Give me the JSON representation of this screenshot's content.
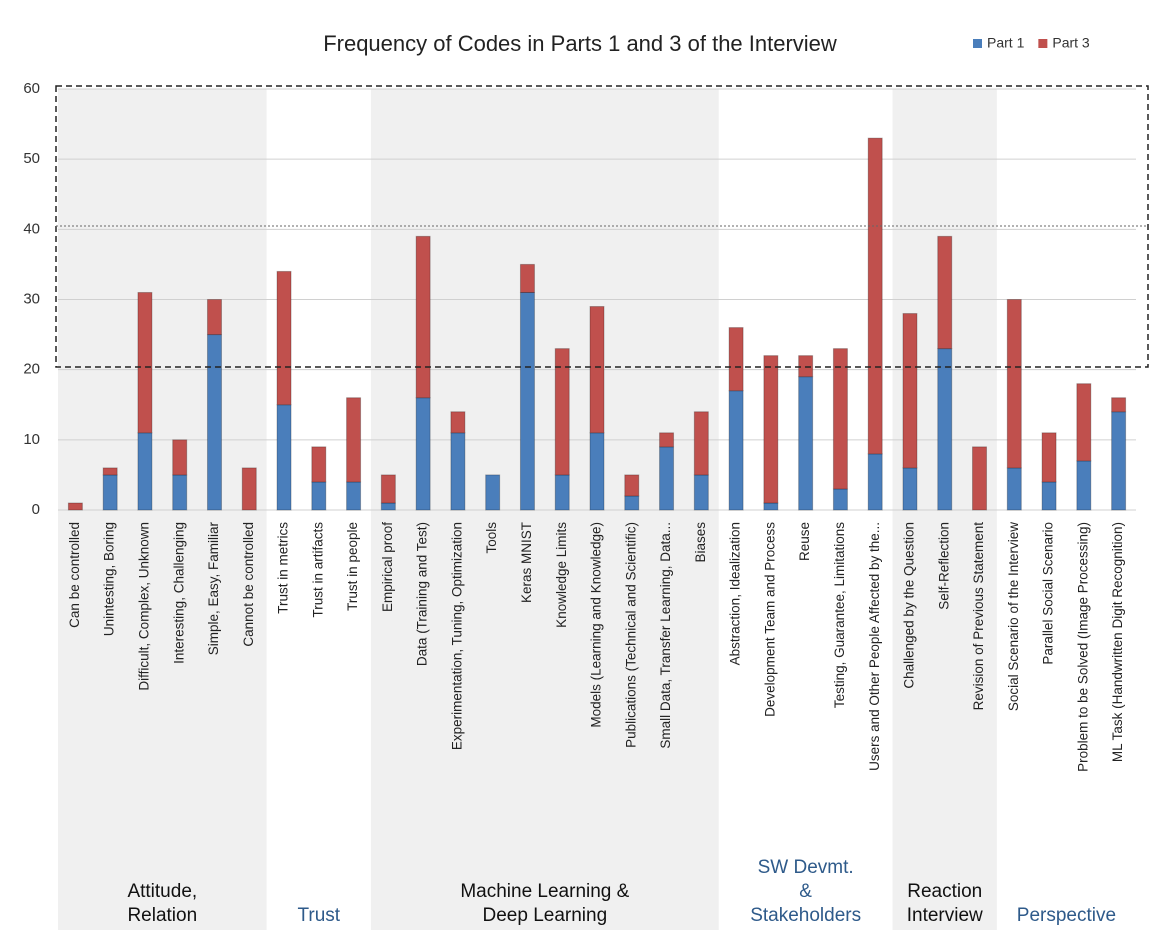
{
  "chart_data": {
    "type": "stacked_bar",
    "title": "Frequency of Codes in Parts 1 and 3 of the Interview",
    "ylim": [
      0,
      60
    ],
    "yticks": [
      0,
      10,
      20,
      30,
      40,
      50,
      60
    ],
    "grid": true,
    "legend": "top-right",
    "groups": [
      {
        "label": [
          "Attitude,",
          "Relation"
        ],
        "shaded": true,
        "label_color": "#111111",
        "categories": [
          "Can be controlled",
          "Unintesting, Boring",
          "Difficult, Complex, Unknown",
          "Interesting, Challenging",
          "Simple, Easy, Familiar",
          "Cannot be controlled"
        ]
      },
      {
        "label": [
          "Trust"
        ],
        "shaded": false,
        "label_color": "#2e5a8a",
        "categories": [
          "Trust in metrics",
          "Trust in artifacts",
          "Trust in people"
        ]
      },
      {
        "label": [
          "Machine Learning &",
          "Deep Learning"
        ],
        "shaded": true,
        "label_color": "#111111",
        "categories": [
          "Empirical proof",
          "Data (Training and Test)",
          "Experimentation, Tuning, Optimization",
          "Tools",
          "Keras MNIST",
          "Knowledge Limits",
          "Models (Learning and Knowledge)",
          "Publications (Technical and Scientific)",
          "Small Data, Transfer Learning, Data...",
          "Biases"
        ]
      },
      {
        "label": [
          "SW Devmt.",
          "&",
          "Stakeholders"
        ],
        "shaded": false,
        "label_color": "#2e5a8a",
        "categories": [
          "Abstraction, Idealization",
          "Development Team and Process",
          "Reuse",
          "Testing, Guarantee, Limitations",
          "Users and Other People Affected by the..."
        ]
      },
      {
        "label": [
          "Reaction",
          "Interview"
        ],
        "shaded": true,
        "label_color": "#111111",
        "categories": [
          "Challenged by the Question",
          "Self-Reflection",
          "Revision of Previous Statement"
        ]
      },
      {
        "label": [
          "Perspective"
        ],
        "shaded": false,
        "label_color": "#2e5a8a",
        "categories": [
          "Social Scenario of the Interview",
          "Parallel Social Scenario",
          "Problem to be Solved (Image Processing)",
          "ML Task (Handwritten Digit Recognition)"
        ]
      }
    ],
    "series": [
      {
        "name": "Part 1",
        "color": "#4a7ebb",
        "values": [
          0,
          5,
          11,
          5,
          25,
          0,
          15,
          4,
          4,
          1,
          16,
          11,
          5,
          31,
          5,
          11,
          2,
          9,
          5,
          17,
          1,
          19,
          3,
          8,
          6,
          23,
          0,
          6,
          4,
          7,
          14
        ]
      },
      {
        "name": "Part  3",
        "color": "#c0504d",
        "values": [
          1,
          1,
          20,
          5,
          5,
          6,
          19,
          5,
          12,
          4,
          23,
          3,
          0,
          4,
          18,
          18,
          3,
          2,
          9,
          9,
          21,
          3,
          20,
          45,
          22,
          16,
          9,
          24,
          7,
          11,
          2
        ]
      }
    ]
  }
}
